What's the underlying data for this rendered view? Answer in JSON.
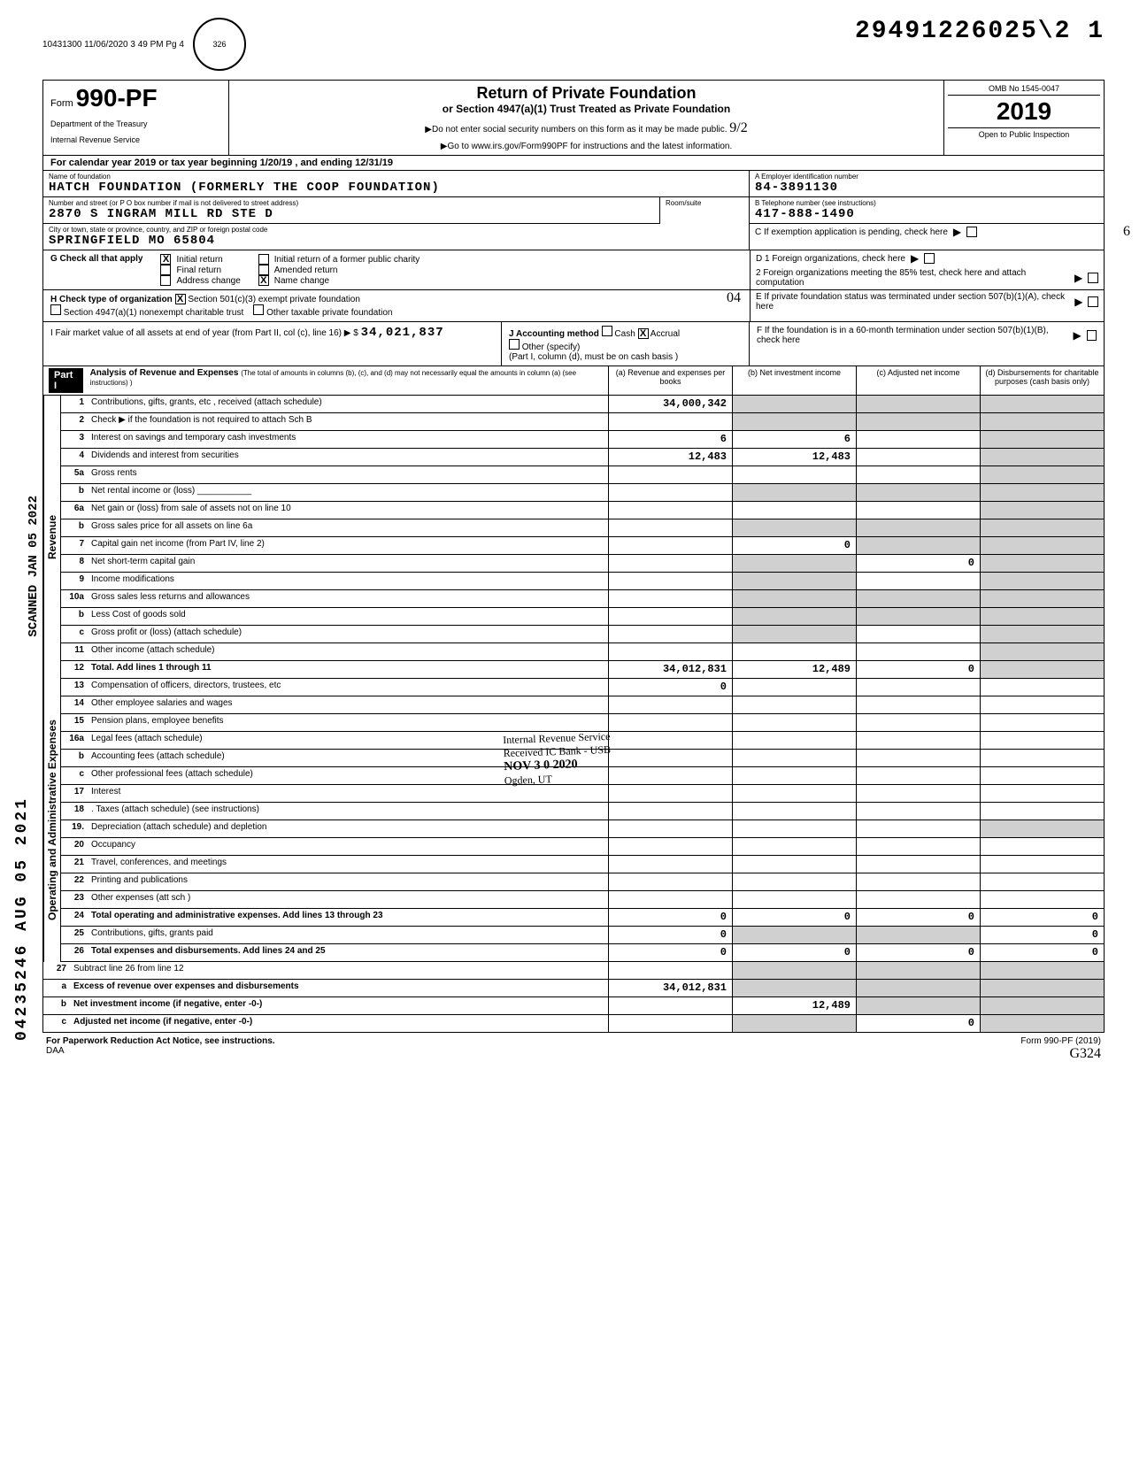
{
  "meta": {
    "scan_id": "10431300 11/06/2020 3 49 PM Pg 4",
    "doc_number": "29491226025\\2 1",
    "stamp_inside": "326"
  },
  "header": {
    "form_prefix": "Form",
    "form_number": "990-PF",
    "dept": "Department of the Treasury",
    "irs": "Internal Revenue Service",
    "title": "Return of Private Foundation",
    "subtitle": "or Section 4947(a)(1) Trust Treated as Private Foundation",
    "note1": "▶Do not enter social security numbers on this form as it may be made public.",
    "note2": "▶Go to www.irs.gov/Form990PF for instructions and the latest information.",
    "cursive": "9/2",
    "omb": "OMB No 1545-0047",
    "year": "2019",
    "inspection": "Open to Public Inspection",
    "cal_year": "For calendar year 2019 or tax year beginning 1/20/19 , and ending 12/31/19"
  },
  "foundation": {
    "name_label": "Name of foundation",
    "name": "HATCH FOUNDATION (FORMERLY THE COOP FOUNDATION)",
    "addr_label": "Number and street (or P O box number if mail is not delivered to street address)",
    "address": "2870 S INGRAM MILL RD STE D",
    "room_label": "Room/suite",
    "city_label": "City or town, state or province, country, and ZIP or foreign postal code",
    "city": "SPRINGFIELD          MO 65804",
    "a_label": "A   Employer identification number",
    "ein": "84-3891130",
    "b_label": "B   Telephone number (see instructions)",
    "phone": "417-888-1490",
    "c_label": "C   If exemption application is pending, check here",
    "margin6": "6"
  },
  "section_g": {
    "label": "G  Check all that apply",
    "initial": "Initial return",
    "initial_former": "Initial return of a former public charity",
    "final": "Final return",
    "amended": "Amended return",
    "address_change": "Address change",
    "name_change": "Name change"
  },
  "section_d": {
    "d1": "D  1  Foreign organizations, check here",
    "d2": "2  Foreign organizations meeting the 85% test, check here and attach computation"
  },
  "section_h": {
    "label": "H  Check type of organization",
    "opt1": "Section 501(c)(3) exempt private foundation",
    "opt2": "Section 4947(a)(1) nonexempt charitable trust",
    "opt3": "Other taxable private foundation",
    "cursive": "04"
  },
  "section_e": {
    "e": "E   If private foundation status was terminated under section 507(b)(1)(A), check here"
  },
  "section_i": {
    "label": "I  Fair market value of all assets at end of year (from Part II, col (c), line 16) ▶ $",
    "value": "34,021,837"
  },
  "section_j": {
    "label": "J  Accounting method",
    "cash": "Cash",
    "accrual": "Accrual",
    "other": "Other (specify)",
    "note": "(Part I, column (d), must be on cash basis )"
  },
  "section_f": {
    "f": "F   If the foundation is in a 60-month termination under section 507(b)(1)(B), check here"
  },
  "part1": {
    "title": "Part I",
    "heading": "Analysis of Revenue and Expenses",
    "subheading": "(The total of amounts in columns (b), (c), and (d) may not necessarily equal the amounts in column (a) (see instructions) )",
    "col_a": "(a) Revenue and expenses per books",
    "col_b": "(b) Net investment income",
    "col_c": "(c) Adjusted net income",
    "col_d": "(d) Disbursements for charitable purposes (cash basis only)"
  },
  "revenue_label": "Revenue",
  "expenses_label": "Operating and Administrative Expenses",
  "lines": {
    "l1": {
      "num": "1",
      "desc": "Contributions, gifts, grants, etc , received (attach schedule)",
      "a": "34,000,342"
    },
    "l2": {
      "num": "2",
      "desc": "Check ▶     if the foundation is not required to attach Sch B"
    },
    "l3": {
      "num": "3",
      "desc": "Interest on savings and temporary cash investments",
      "a": "6",
      "b": "6"
    },
    "l4": {
      "num": "4",
      "desc": "Dividends and interest from securities",
      "a": "12,483",
      "b": "12,483"
    },
    "l5a": {
      "num": "5a",
      "desc": "Gross rents"
    },
    "l5b": {
      "num": "b",
      "desc": "Net rental income or (loss) ___________"
    },
    "l6a": {
      "num": "6a",
      "desc": "Net gain or (loss) from sale of assets not on line 10"
    },
    "l6b": {
      "num": "b",
      "desc": "Gross sales price for all assets on line 6a"
    },
    "l7": {
      "num": "7",
      "desc": "Capital gain net income (from Part IV, line 2)",
      "b": "0"
    },
    "l8": {
      "num": "8",
      "desc": "Net short-term capital gain",
      "c": "0"
    },
    "l9": {
      "num": "9",
      "desc": "Income modifications"
    },
    "l10a": {
      "num": "10a",
      "desc": "Gross sales less returns and allowances"
    },
    "l10b": {
      "num": "b",
      "desc": "Less Cost of goods sold"
    },
    "l10c": {
      "num": "c",
      "desc": "Gross profit or (loss) (attach schedule)"
    },
    "l11": {
      "num": "11",
      "desc": "Other income (attach schedule)"
    },
    "l12": {
      "num": "12",
      "desc": "Total. Add lines 1 through 11",
      "a": "34,012,831",
      "b": "12,489",
      "c": "0"
    },
    "l13": {
      "num": "13",
      "desc": "Compensation of officers, directors, trustees, etc",
      "a": "0"
    },
    "l14": {
      "num": "14",
      "desc": "Other employee salaries and wages"
    },
    "l15": {
      "num": "15",
      "desc": "Pension plans, employee benefits"
    },
    "l16a": {
      "num": "16a",
      "desc": "Legal fees (attach schedule)"
    },
    "l16b": {
      "num": "b",
      "desc": "Accounting fees (attach schedule)"
    },
    "l16c": {
      "num": "c",
      "desc": "Other professional fees (attach schedule)"
    },
    "l17": {
      "num": "17",
      "desc": "Interest"
    },
    "l18": {
      "num": "18",
      "desc": ". Taxes (attach schedule) (see instructions)"
    },
    "l19": {
      "num": "19.",
      "desc": "Depreciation (attach schedule) and depletion"
    },
    "l20": {
      "num": "20",
      "desc": "Occupancy"
    },
    "l21": {
      "num": "21",
      "desc": "Travel, conferences, and meetings"
    },
    "l22": {
      "num": "22",
      "desc": "Printing and publications"
    },
    "l23": {
      "num": "23",
      "desc": "Other expenses (att sch )"
    },
    "l24": {
      "num": "24",
      "desc": "Total operating and administrative expenses. Add lines 13 through 23",
      "a": "0",
      "b": "0",
      "c": "0",
      "d": "0"
    },
    "l25": {
      "num": "25",
      "desc": "Contributions, gifts, grants paid",
      "a": "0",
      "d": "0"
    },
    "l26": {
      "num": "26",
      "desc": "Total expenses and disbursements. Add lines 24 and 25",
      "a": "0",
      "b": "0",
      "c": "0",
      "d": "0"
    },
    "l27": {
      "num": "27",
      "desc": "Subtract line 26 from line 12"
    },
    "l27a": {
      "num": "a",
      "desc": "Excess of revenue over expenses and disbursements",
      "a": "34,012,831"
    },
    "l27b": {
      "num": "b",
      "desc": "Net investment income (if negative, enter -0-)",
      "b": "12,489"
    },
    "l27c": {
      "num": "c",
      "desc": "Adjusted net income (if negative, enter -0-)",
      "c": "0"
    }
  },
  "irs_stamp": {
    "l1": "Internal Revenue Service",
    "l2": "Received   IC Bank - USB",
    "l3": "NOV 3 0 2020",
    "l4": "Ogden, UT"
  },
  "side": {
    "scanned": "SCANNED JAN 05 2022",
    "barcode": "04235246 AUG 05 2021"
  },
  "footer": {
    "left": "For Paperwork Reduction Act Notice, see instructions.",
    "daa": "DAA",
    "right": "Form 990-PF (2019)",
    "cursive": "G324"
  }
}
